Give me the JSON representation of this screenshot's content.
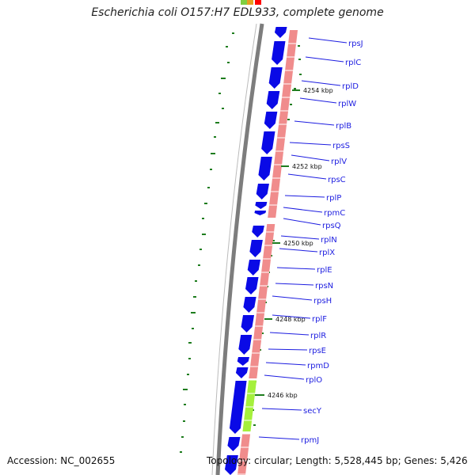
{
  "title": "Escherichia coli O157:H7 EDL933, complete genome",
  "accession": "Accession: NC_002655",
  "summary": "Topology: circular; Length: 5,528,445 bp; Genes: 5,426",
  "colors": {
    "gene_arrow": "#0a0ae6",
    "track_pink": "#f08c8c",
    "track_green": "#a5f03c",
    "backbone": "#7d7d7d",
    "gc_dots": "#1e7d1e",
    "label": "#1c1ce0"
  },
  "position_labels": [
    "4254 kbp",
    "4252 kbp",
    "4250 kbp",
    "4248 kbp",
    "4246 kbp"
  ],
  "genes": [
    "rpsJ",
    "rplC",
    "rplD",
    "rplW",
    "rplB",
    "rpsS",
    "rplV",
    "rpsC",
    "rplP",
    "rpmC",
    "rpsQ",
    "rplN",
    "rplX",
    "rplE",
    "rpsN",
    "rpsH",
    "rplF",
    "rplR",
    "rpsE",
    "rpmD",
    "rplO",
    "secY",
    "rpmJ"
  ]
}
